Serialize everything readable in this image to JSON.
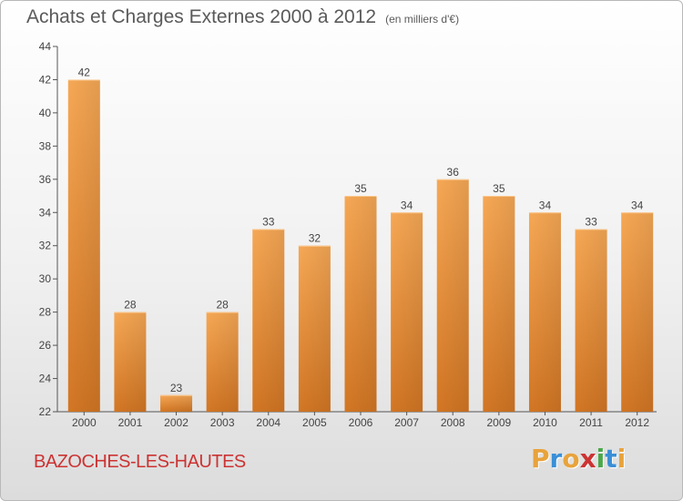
{
  "header": {
    "title": "Achats et Charges Externes 2000 à 2012",
    "subtitle": "(en milliers d'€)"
  },
  "footer": {
    "commune": "BAZOCHES-LES-HAUTES",
    "logo_letters": [
      "P",
      "r",
      "o",
      "x",
      "i",
      "t",
      "i"
    ],
    "logo_colors": [
      "#e8a33c",
      "#3a8fd6",
      "#e8a33c",
      "#cc3333",
      "#4aa84a",
      "#3a8fd6",
      "#e8a33c"
    ]
  },
  "chart_data": {
    "type": "bar",
    "categories": [
      "2000",
      "2001",
      "2002",
      "2003",
      "2004",
      "2005",
      "2006",
      "2007",
      "2008",
      "2009",
      "2010",
      "2011",
      "2012"
    ],
    "values": [
      42,
      28,
      23,
      28,
      33,
      32,
      35,
      34,
      36,
      35,
      34,
      33,
      34
    ],
    "ylim": [
      22,
      44
    ],
    "yticks": [
      22,
      24,
      26,
      28,
      30,
      32,
      34,
      36,
      38,
      40,
      42,
      44
    ],
    "grid": false,
    "bar_color": "#f0a050",
    "bar_color_dark": "#d07020"
  }
}
